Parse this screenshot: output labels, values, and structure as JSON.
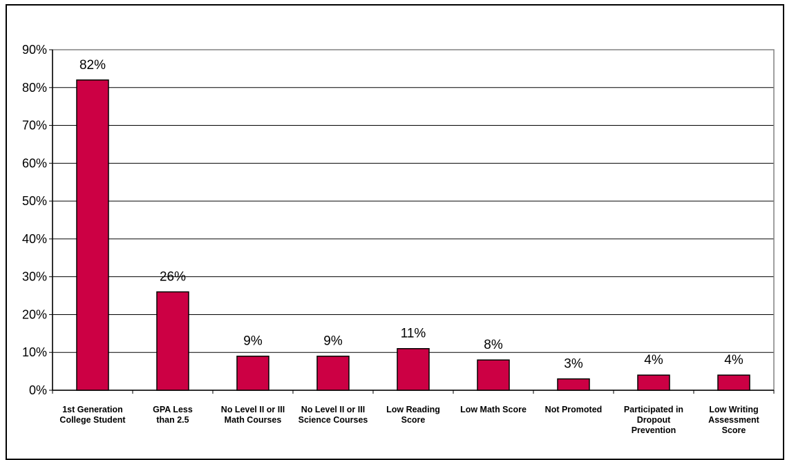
{
  "chart_data": {
    "type": "bar",
    "title": "",
    "xlabel": "",
    "ylabel": "",
    "ylim": [
      0,
      90
    ],
    "yticks": [
      "0%",
      "10%",
      "20%",
      "30%",
      "40%",
      "50%",
      "60%",
      "70%",
      "80%",
      "90%"
    ],
    "categories": [
      [
        "1st Generation",
        "College Student"
      ],
      [
        "GPA Less",
        "than 2.5"
      ],
      [
        "No Level II or III",
        "Math Courses"
      ],
      [
        "No Level II or III",
        "Science Courses"
      ],
      [
        "Low Reading",
        "Score"
      ],
      [
        "Low Math Score"
      ],
      [
        "Not Promoted"
      ],
      [
        "Participated in",
        "Dropout",
        "Prevention"
      ],
      [
        "Low Writing",
        "Assessment",
        "Score"
      ]
    ],
    "values": [
      82,
      26,
      9,
      9,
      11,
      8,
      3,
      4,
      4
    ],
    "data_labels": [
      "82%",
      "26%",
      "9%",
      "9%",
      "11%",
      "8%",
      "3%",
      "4%",
      "4%"
    ],
    "grid": true,
    "legend": "none",
    "colors": {
      "bar": "#cc0044",
      "gridline": "#000000",
      "plot_border": "#808080"
    }
  }
}
